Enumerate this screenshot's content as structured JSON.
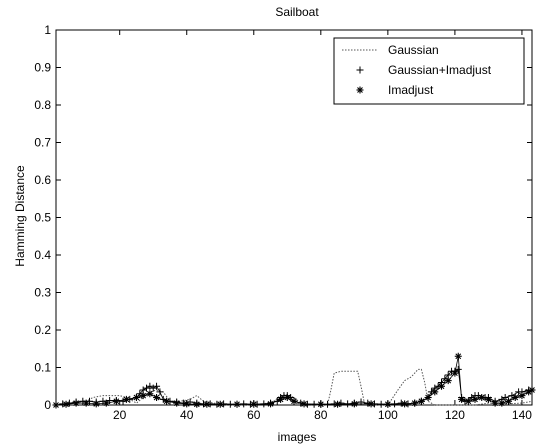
{
  "chart_data": {
    "type": "line",
    "title": "Sailboat",
    "xlabel": "images",
    "ylabel": "Hamming Distance",
    "xlim": [
      1,
      143
    ],
    "ylim": [
      0,
      1
    ],
    "xticks": [
      20,
      40,
      60,
      80,
      100,
      120,
      140
    ],
    "xtick_labels": [
      "20",
      "40",
      "60",
      "80",
      "100",
      "120",
      "140"
    ],
    "yticks": [
      0,
      0.1,
      0.2,
      0.3,
      0.4,
      0.5,
      0.6,
      0.7,
      0.8,
      0.9,
      1
    ],
    "ytick_labels": [
      "0",
      "0.1",
      "0.2",
      "0.3",
      "0.4",
      "0.5",
      "0.6",
      "0.7",
      "0.8",
      "0.9",
      "1"
    ],
    "grid": false,
    "legend_position": "top-right",
    "series": [
      {
        "name": "Gaussian",
        "marker": "none",
        "line": "dotted",
        "points": [
          [
            1,
            0
          ],
          [
            5,
            0.003
          ],
          [
            10,
            0.01
          ],
          [
            12,
            0.02
          ],
          [
            15,
            0.025
          ],
          [
            20,
            0.025
          ],
          [
            22,
            0.02
          ],
          [
            25,
            0.005
          ],
          [
            27,
            0.02
          ],
          [
            29,
            0.035
          ],
          [
            31,
            0.04
          ],
          [
            33,
            0.035
          ],
          [
            35,
            0.01
          ],
          [
            38,
            0.01
          ],
          [
            41,
            0.015
          ],
          [
            43,
            0.025
          ],
          [
            45,
            0.01
          ],
          [
            48,
            0.005
          ],
          [
            52,
            0
          ],
          [
            58,
            0
          ],
          [
            63,
            0.003
          ],
          [
            66,
            0.01
          ],
          [
            68,
            0.025
          ],
          [
            70,
            0.028
          ],
          [
            72,
            0.02
          ],
          [
            74,
            0.005
          ],
          [
            78,
            0
          ],
          [
            82,
            0
          ],
          [
            83,
            0.04
          ],
          [
            84,
            0.085
          ],
          [
            86,
            0.09
          ],
          [
            90,
            0.09
          ],
          [
            91,
            0.09
          ],
          [
            92,
            0.05
          ],
          [
            93,
            0.005
          ],
          [
            96,
            0
          ],
          [
            100,
            0
          ],
          [
            103,
            0.04
          ],
          [
            105,
            0.065
          ],
          [
            107,
            0.075
          ],
          [
            109,
            0.095
          ],
          [
            110,
            0.095
          ],
          [
            111,
            0.06
          ],
          [
            112,
            0.01
          ],
          [
            114,
            0
          ],
          [
            120,
            0
          ],
          [
            122,
            0
          ],
          [
            126,
            0
          ],
          [
            130,
            0.005
          ],
          [
            135,
            0.003
          ],
          [
            140,
            0.005
          ],
          [
            143,
            0.01
          ]
        ]
      },
      {
        "name": "Gaussian+Imadjust",
        "marker": "plus",
        "line": "solid",
        "points": [
          [
            1,
            0
          ],
          [
            3,
            0.003
          ],
          [
            5,
            0.005
          ],
          [
            7,
            0.008
          ],
          [
            9,
            0.01
          ],
          [
            11,
            0.01
          ],
          [
            13,
            0.008
          ],
          [
            15,
            0.01
          ],
          [
            17,
            0.012
          ],
          [
            19,
            0.012
          ],
          [
            21,
            0.01
          ],
          [
            23,
            0.015
          ],
          [
            25,
            0.02
          ],
          [
            26,
            0.03
          ],
          [
            27,
            0.04
          ],
          [
            28,
            0.045
          ],
          [
            29,
            0.05
          ],
          [
            30,
            0.045
          ],
          [
            31,
            0.05
          ],
          [
            32,
            0.035
          ],
          [
            33,
            0.015
          ],
          [
            35,
            0.01
          ],
          [
            37,
            0.008
          ],
          [
            39,
            0.005
          ],
          [
            41,
            0.008
          ],
          [
            43,
            0.005
          ],
          [
            45,
            0.003
          ],
          [
            47,
            0.003
          ],
          [
            49,
            0.002
          ],
          [
            51,
            0.003
          ],
          [
            53,
            0.002
          ],
          [
            55,
            0.002
          ],
          [
            57,
            0.003
          ],
          [
            59,
            0.002
          ],
          [
            61,
            0.002
          ],
          [
            63,
            0.003
          ],
          [
            65,
            0.005
          ],
          [
            67,
            0.01
          ],
          [
            68,
            0.02
          ],
          [
            69,
            0.025
          ],
          [
            70,
            0.025
          ],
          [
            71,
            0.02
          ],
          [
            72,
            0.01
          ],
          [
            74,
            0.005
          ],
          [
            76,
            0.002
          ],
          [
            78,
            0.002
          ],
          [
            80,
            0.002
          ],
          [
            82,
            0.002
          ],
          [
            84,
            0.003
          ],
          [
            86,
            0.005
          ],
          [
            88,
            0.003
          ],
          [
            90,
            0.005
          ],
          [
            92,
            0.008
          ],
          [
            94,
            0.005
          ],
          [
            96,
            0.003
          ],
          [
            98,
            0.002
          ],
          [
            100,
            0.002
          ],
          [
            102,
            0.003
          ],
          [
            104,
            0.005
          ],
          [
            106,
            0.003
          ],
          [
            108,
            0.005
          ],
          [
            110,
            0.01
          ],
          [
            112,
            0.02
          ],
          [
            113,
            0.035
          ],
          [
            114,
            0.045
          ],
          [
            115,
            0.05
          ],
          [
            116,
            0.06
          ],
          [
            117,
            0.07
          ],
          [
            118,
            0.08
          ],
          [
            119,
            0.09
          ],
          [
            120,
            0.09
          ],
          [
            121,
            0.095
          ],
          [
            122,
            0.02
          ],
          [
            123,
            0.01
          ],
          [
            125,
            0.02
          ],
          [
            126,
            0.025
          ],
          [
            127,
            0.025
          ],
          [
            129,
            0.02
          ],
          [
            130,
            0.02
          ],
          [
            132,
            0.01
          ],
          [
            134,
            0.015
          ],
          [
            135,
            0.02
          ],
          [
            137,
            0.025
          ],
          [
            139,
            0.035
          ],
          [
            140,
            0.035
          ],
          [
            142,
            0.04
          ],
          [
            143,
            0.04
          ]
        ]
      },
      {
        "name": "Imadjust",
        "marker": "star",
        "line": "solid",
        "points": [
          [
            1,
            0
          ],
          [
            4,
            0.002
          ],
          [
            7,
            0.005
          ],
          [
            10,
            0.005
          ],
          [
            13,
            0.003
          ],
          [
            16,
            0.005
          ],
          [
            19,
            0.01
          ],
          [
            22,
            0.015
          ],
          [
            25,
            0.02
          ],
          [
            27,
            0.025
          ],
          [
            29,
            0.03
          ],
          [
            31,
            0.02
          ],
          [
            34,
            0.01
          ],
          [
            37,
            0.005
          ],
          [
            40,
            0.003
          ],
          [
            43,
            0.002
          ],
          [
            46,
            0.002
          ],
          [
            50,
            0.002
          ],
          [
            55,
            0.002
          ],
          [
            60,
            0.002
          ],
          [
            65,
            0.003
          ],
          [
            68,
            0.015
          ],
          [
            70,
            0.02
          ],
          [
            72,
            0.01
          ],
          [
            75,
            0.003
          ],
          [
            80,
            0.002
          ],
          [
            85,
            0.002
          ],
          [
            90,
            0.003
          ],
          [
            95,
            0.003
          ],
          [
            100,
            0.002
          ],
          [
            105,
            0.003
          ],
          [
            108,
            0.005
          ],
          [
            110,
            0.01
          ],
          [
            112,
            0.02
          ],
          [
            114,
            0.035
          ],
          [
            116,
            0.05
          ],
          [
            118,
            0.065
          ],
          [
            120,
            0.085
          ],
          [
            121,
            0.13
          ],
          [
            122,
            0.015
          ],
          [
            124,
            0.01
          ],
          [
            126,
            0.015
          ],
          [
            128,
            0.02
          ],
          [
            130,
            0.015
          ],
          [
            132,
            0.005
          ],
          [
            134,
            0.005
          ],
          [
            136,
            0.01
          ],
          [
            138,
            0.02
          ],
          [
            140,
            0.025
          ],
          [
            142,
            0.035
          ],
          [
            143,
            0.04
          ]
        ]
      }
    ]
  }
}
